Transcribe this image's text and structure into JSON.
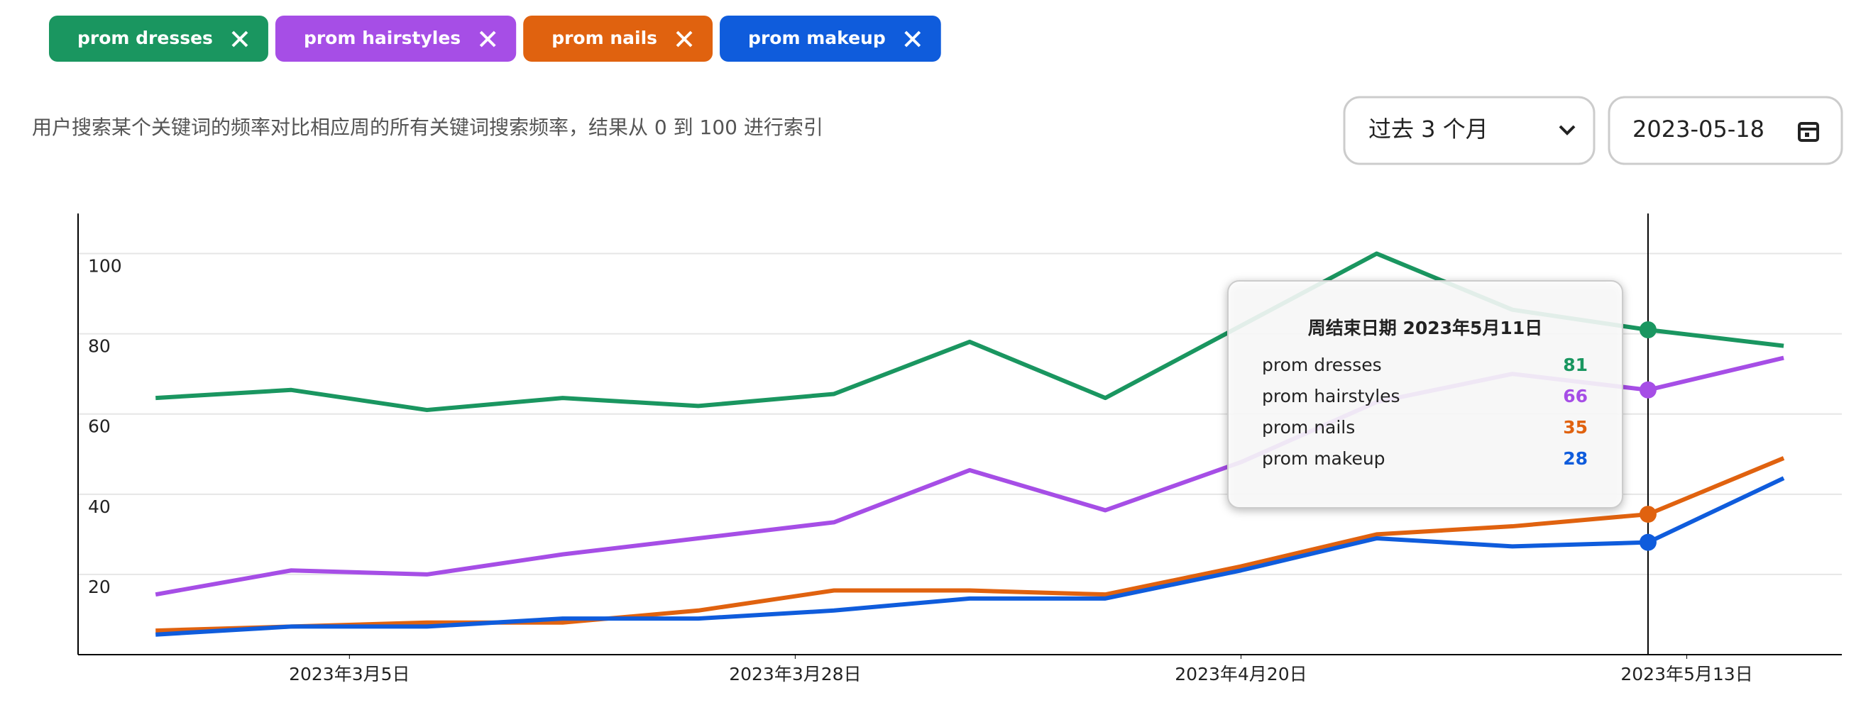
{
  "controls": {
    "subtitle": "用户搜索某个关键词的频率对比相应周的所有关键词搜索频率，结果从 0 到 100 进行索引",
    "range": "过去 3 个月",
    "date": "2023-05-18"
  },
  "chart_data": {
    "type": "line",
    "x": [
      "2023-02-23",
      "2023-03-02",
      "2023-03-09",
      "2023-03-16",
      "2023-03-23",
      "2023-03-30",
      "2023-04-06",
      "2023-04-13",
      "2023-04-20",
      "2023-04-27",
      "2023-05-04",
      "2023-05-11",
      "2023-05-18"
    ],
    "series": [
      {
        "name": "prom dresses",
        "color": "#1a9660",
        "values": [
          64,
          66,
          61,
          64,
          62,
          65,
          78,
          64,
          82,
          100,
          86,
          81,
          77
        ]
      },
      {
        "name": "prom hairstyles",
        "color": "#a64ee6",
        "values": [
          15,
          21,
          20,
          25,
          29,
          33,
          46,
          36,
          48,
          63,
          70,
          66,
          74
        ]
      },
      {
        "name": "prom nails",
        "color": "#e0620f",
        "values": [
          6,
          7,
          8,
          8,
          11,
          16,
          16,
          15,
          22,
          30,
          32,
          35,
          49
        ]
      },
      {
        "name": "prom makeup",
        "color": "#0f5cdc",
        "values": [
          5,
          7,
          7,
          9,
          9,
          11,
          14,
          14,
          21,
          29,
          27,
          28,
          44
        ]
      }
    ],
    "xlim": [
      "2023-02-19",
      "2023-05-21"
    ],
    "xticks": [
      {
        "value": "2023-03-05",
        "label": "2023年3月5日"
      },
      {
        "value": "2023-03-28",
        "label": "2023年3月28日"
      },
      {
        "value": "2023-04-20",
        "label": "2023年4月20日"
      },
      {
        "value": "2023-05-13",
        "label": "2023年5月13日"
      }
    ],
    "ylim": [
      0,
      110
    ],
    "yticks": [
      20,
      40,
      60,
      80,
      100
    ],
    "grid": true,
    "tooltip": {
      "title": "周结束日期 2023年5月11日"
    }
  }
}
